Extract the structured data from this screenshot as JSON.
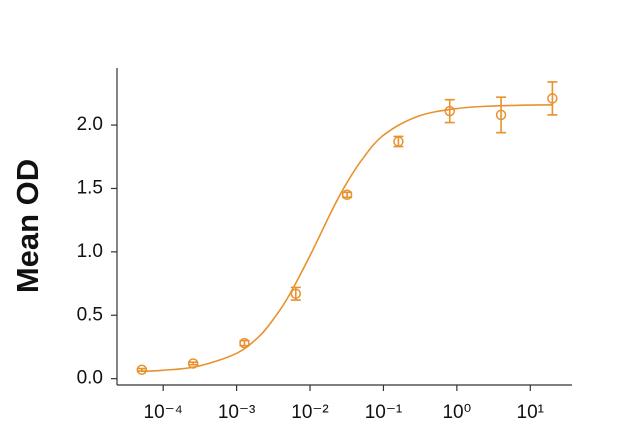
{
  "chart_data": {
    "type": "scatter",
    "y_label": "Mean OD",
    "color": "#e8912d",
    "x_scale": "log",
    "points": {
      "x": [
        5.12e-05,
        0.000256,
        0.00128,
        0.0064,
        0.032,
        0.16,
        0.8,
        4,
        20
      ],
      "values": [
        0.07,
        0.12,
        0.28,
        0.67,
        1.45,
        1.87,
        2.11,
        2.08,
        2.21
      ],
      "errors": [
        0.01,
        0.01,
        0.02,
        0.05,
        0.02,
        0.04,
        0.09,
        0.14,
        0.13
      ]
    },
    "curve": {
      "x": [
        5e-05,
        0.0001,
        0.0003,
        0.001,
        0.002,
        0.003,
        0.005,
        0.01,
        0.02,
        0.03,
        0.05,
        0.1,
        0.3,
        1,
        3,
        20
      ],
      "values": [
        0.058,
        0.066,
        0.098,
        0.2,
        0.33,
        0.45,
        0.64,
        0.97,
        1.33,
        1.52,
        1.72,
        1.92,
        2.07,
        2.13,
        2.15,
        2.16
      ]
    },
    "xlim": [
      2.35e-05,
      37
    ],
    "ylim": [
      -0.05,
      2.45
    ],
    "xticks": [
      {
        "value": 0.0001,
        "label": "10⁻⁴"
      },
      {
        "value": 0.001,
        "label": "10⁻³"
      },
      {
        "value": 0.01,
        "label": "10⁻²"
      },
      {
        "value": 0.1,
        "label": "10⁻¹"
      },
      {
        "value": 1,
        "label": "10⁰"
      },
      {
        "value": 10,
        "label": "10¹"
      }
    ],
    "yticks": [
      {
        "value": 0,
        "label": "0.0"
      },
      0.5,
      {
        "value": 1,
        "label": "1.0"
      },
      1.5,
      {
        "value": 2,
        "label": "2.0"
      }
    ]
  }
}
